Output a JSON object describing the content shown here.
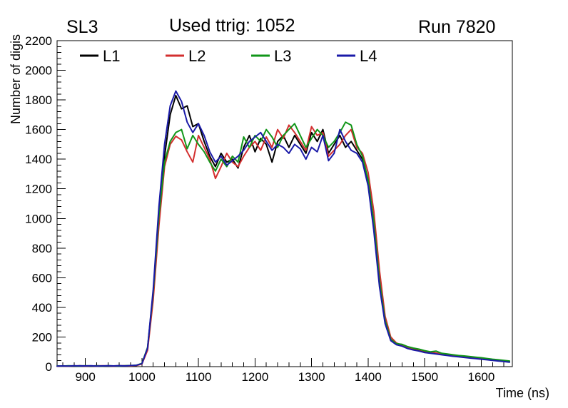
{
  "header": {
    "left": "SL3",
    "center": "Used ttrig: 1052",
    "right": "Run 7820"
  },
  "chart_data": {
    "type": "line",
    "title": "Used ttrig: 1052",
    "subtitle_left": "SL3",
    "subtitle_right": "Run 7820",
    "xlabel": "Time (ns)",
    "ylabel": "Number of digis",
    "xlim": [
      850,
      1655
    ],
    "ylim": [
      0,
      2200
    ],
    "x_ticks": [
      900,
      1000,
      1100,
      1200,
      1300,
      1400,
      1500,
      1600
    ],
    "y_ticks": [
      0,
      200,
      400,
      600,
      800,
      1000,
      1200,
      1400,
      1600,
      1800,
      2000,
      2200
    ],
    "grid": false,
    "legend_position": "top-inside",
    "x": [
      850,
      860,
      870,
      880,
      890,
      900,
      910,
      920,
      930,
      940,
      950,
      960,
      970,
      980,
      990,
      1000,
      1010,
      1020,
      1030,
      1040,
      1050,
      1060,
      1070,
      1080,
      1090,
      1100,
      1110,
      1120,
      1130,
      1140,
      1150,
      1160,
      1170,
      1180,
      1190,
      1200,
      1210,
      1220,
      1230,
      1240,
      1250,
      1260,
      1270,
      1280,
      1290,
      1300,
      1310,
      1320,
      1330,
      1340,
      1350,
      1360,
      1370,
      1380,
      1390,
      1400,
      1410,
      1420,
      1430,
      1440,
      1450,
      1460,
      1470,
      1480,
      1490,
      1500,
      1510,
      1520,
      1530,
      1540,
      1550,
      1560,
      1570,
      1580,
      1590,
      1600,
      1610,
      1620,
      1630,
      1640,
      1650
    ],
    "series": [
      {
        "name": "L1",
        "color": "#000000",
        "values": [
          4,
          3,
          5,
          4,
          6,
          5,
          4,
          6,
          5,
          4,
          5,
          6,
          5,
          6,
          8,
          20,
          120,
          480,
          1000,
          1420,
          1700,
          1830,
          1740,
          1760,
          1620,
          1640,
          1520,
          1420,
          1350,
          1440,
          1380,
          1400,
          1340,
          1480,
          1560,
          1450,
          1540,
          1500,
          1380,
          1520,
          1560,
          1480,
          1560,
          1500,
          1440,
          1580,
          1520,
          1600,
          1440,
          1500,
          1560,
          1480,
          1520,
          1460,
          1400,
          1250,
          950,
          560,
          300,
          180,
          150,
          140,
          125,
          118,
          110,
          100,
          95,
          88,
          82,
          78,
          72,
          68,
          64,
          60,
          56,
          52,
          48,
          44,
          40,
          36,
          32
        ]
      },
      {
        "name": "L2",
        "color": "#d32f2f",
        "values": [
          3,
          4,
          4,
          5,
          5,
          4,
          5,
          4,
          6,
          5,
          4,
          5,
          6,
          5,
          7,
          18,
          110,
          450,
          950,
          1350,
          1500,
          1555,
          1530,
          1450,
          1380,
          1560,
          1480,
          1400,
          1270,
          1350,
          1440,
          1380,
          1350,
          1420,
          1480,
          1520,
          1460,
          1550,
          1480,
          1600,
          1540,
          1630,
          1580,
          1520,
          1460,
          1620,
          1560,
          1580,
          1420,
          1460,
          1500,
          1560,
          1600,
          1480,
          1440,
          1310,
          1050,
          650,
          340,
          200,
          160,
          145,
          130,
          122,
          115,
          105,
          98,
          92,
          86,
          82,
          76,
          72,
          68,
          64,
          60,
          56,
          52,
          48,
          44,
          40,
          36
        ]
      },
      {
        "name": "L3",
        "color": "#109618",
        "values": [
          5,
          4,
          6,
          5,
          4,
          6,
          5,
          5,
          4,
          6,
          5,
          4,
          6,
          7,
          9,
          22,
          130,
          500,
          1020,
          1380,
          1520,
          1580,
          1600,
          1470,
          1560,
          1500,
          1450,
          1380,
          1320,
          1400,
          1350,
          1420,
          1380,
          1550,
          1480,
          1560,
          1520,
          1600,
          1550,
          1480,
          1560,
          1600,
          1640,
          1560,
          1480,
          1540,
          1600,
          1560,
          1480,
          1520,
          1580,
          1650,
          1630,
          1500,
          1420,
          1260,
          980,
          580,
          310,
          185,
          155,
          150,
          135,
          125,
          118,
          108,
          100,
          105,
          90,
          85,
          80,
          75,
          72,
          68,
          64,
          60,
          55,
          50,
          46,
          42,
          38
        ]
      },
      {
        "name": "L4",
        "color": "#1a1aa8",
        "values": [
          4,
          5,
          4,
          6,
          5,
          5,
          6,
          4,
          5,
          6,
          5,
          6,
          5,
          7,
          9,
          20,
          125,
          520,
          1080,
          1500,
          1760,
          1860,
          1790,
          1650,
          1580,
          1640,
          1560,
          1450,
          1380,
          1420,
          1360,
          1390,
          1420,
          1460,
          1520,
          1550,
          1580,
          1520,
          1460,
          1500,
          1480,
          1440,
          1500,
          1470,
          1400,
          1480,
          1450,
          1560,
          1390,
          1440,
          1600,
          1520,
          1460,
          1440,
          1380,
          1220,
          920,
          540,
          290,
          175,
          148,
          138,
          122,
          112,
          105,
          95,
          90,
          85,
          80,
          75,
          70,
          66,
          62,
          58,
          54,
          50,
          46,
          42,
          38,
          34,
          30
        ]
      }
    ]
  }
}
